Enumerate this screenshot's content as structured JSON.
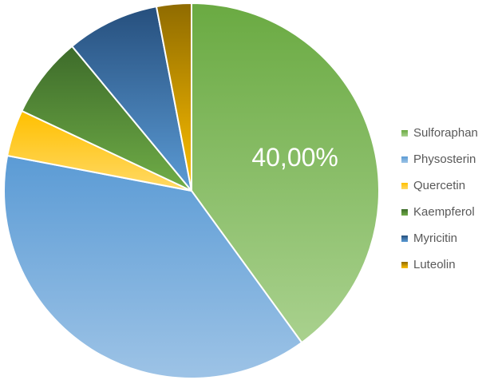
{
  "chart_data": {
    "type": "pie",
    "title": "",
    "categories": [
      "Sulforaphan",
      "Physosterin",
      "Quercetin",
      "Kaempferol",
      "Myricitin",
      "Luteolin"
    ],
    "values": [
      40,
      38,
      4,
      7,
      8,
      3
    ],
    "unit": "%",
    "start_angle_deg": 0,
    "direction": "clockwise",
    "data_labels": [
      {
        "category": "Sulforaphan",
        "text": "40,00%"
      }
    ],
    "colors": {
      "Sulforaphan": [
        "#6aaa42",
        "#a9d18e"
      ],
      "Physosterin": [
        "#5b9bd5",
        "#9dc3e6"
      ],
      "Quercetin": [
        "#ffc000",
        "#ffd966"
      ],
      "Kaempferol": [
        "#3d6b2a",
        "#70ad47"
      ],
      "Myricitin": [
        "#264f7d",
        "#5b9bd5"
      ],
      "Luteolin": [
        "#8f6b00",
        "#ffc000"
      ]
    },
    "legend": {
      "position": "right",
      "entries": [
        "Sulforaphan",
        "Physosterin",
        "Quercetin",
        "Kaempferol",
        "Myricitin",
        "Luteolin"
      ]
    }
  }
}
